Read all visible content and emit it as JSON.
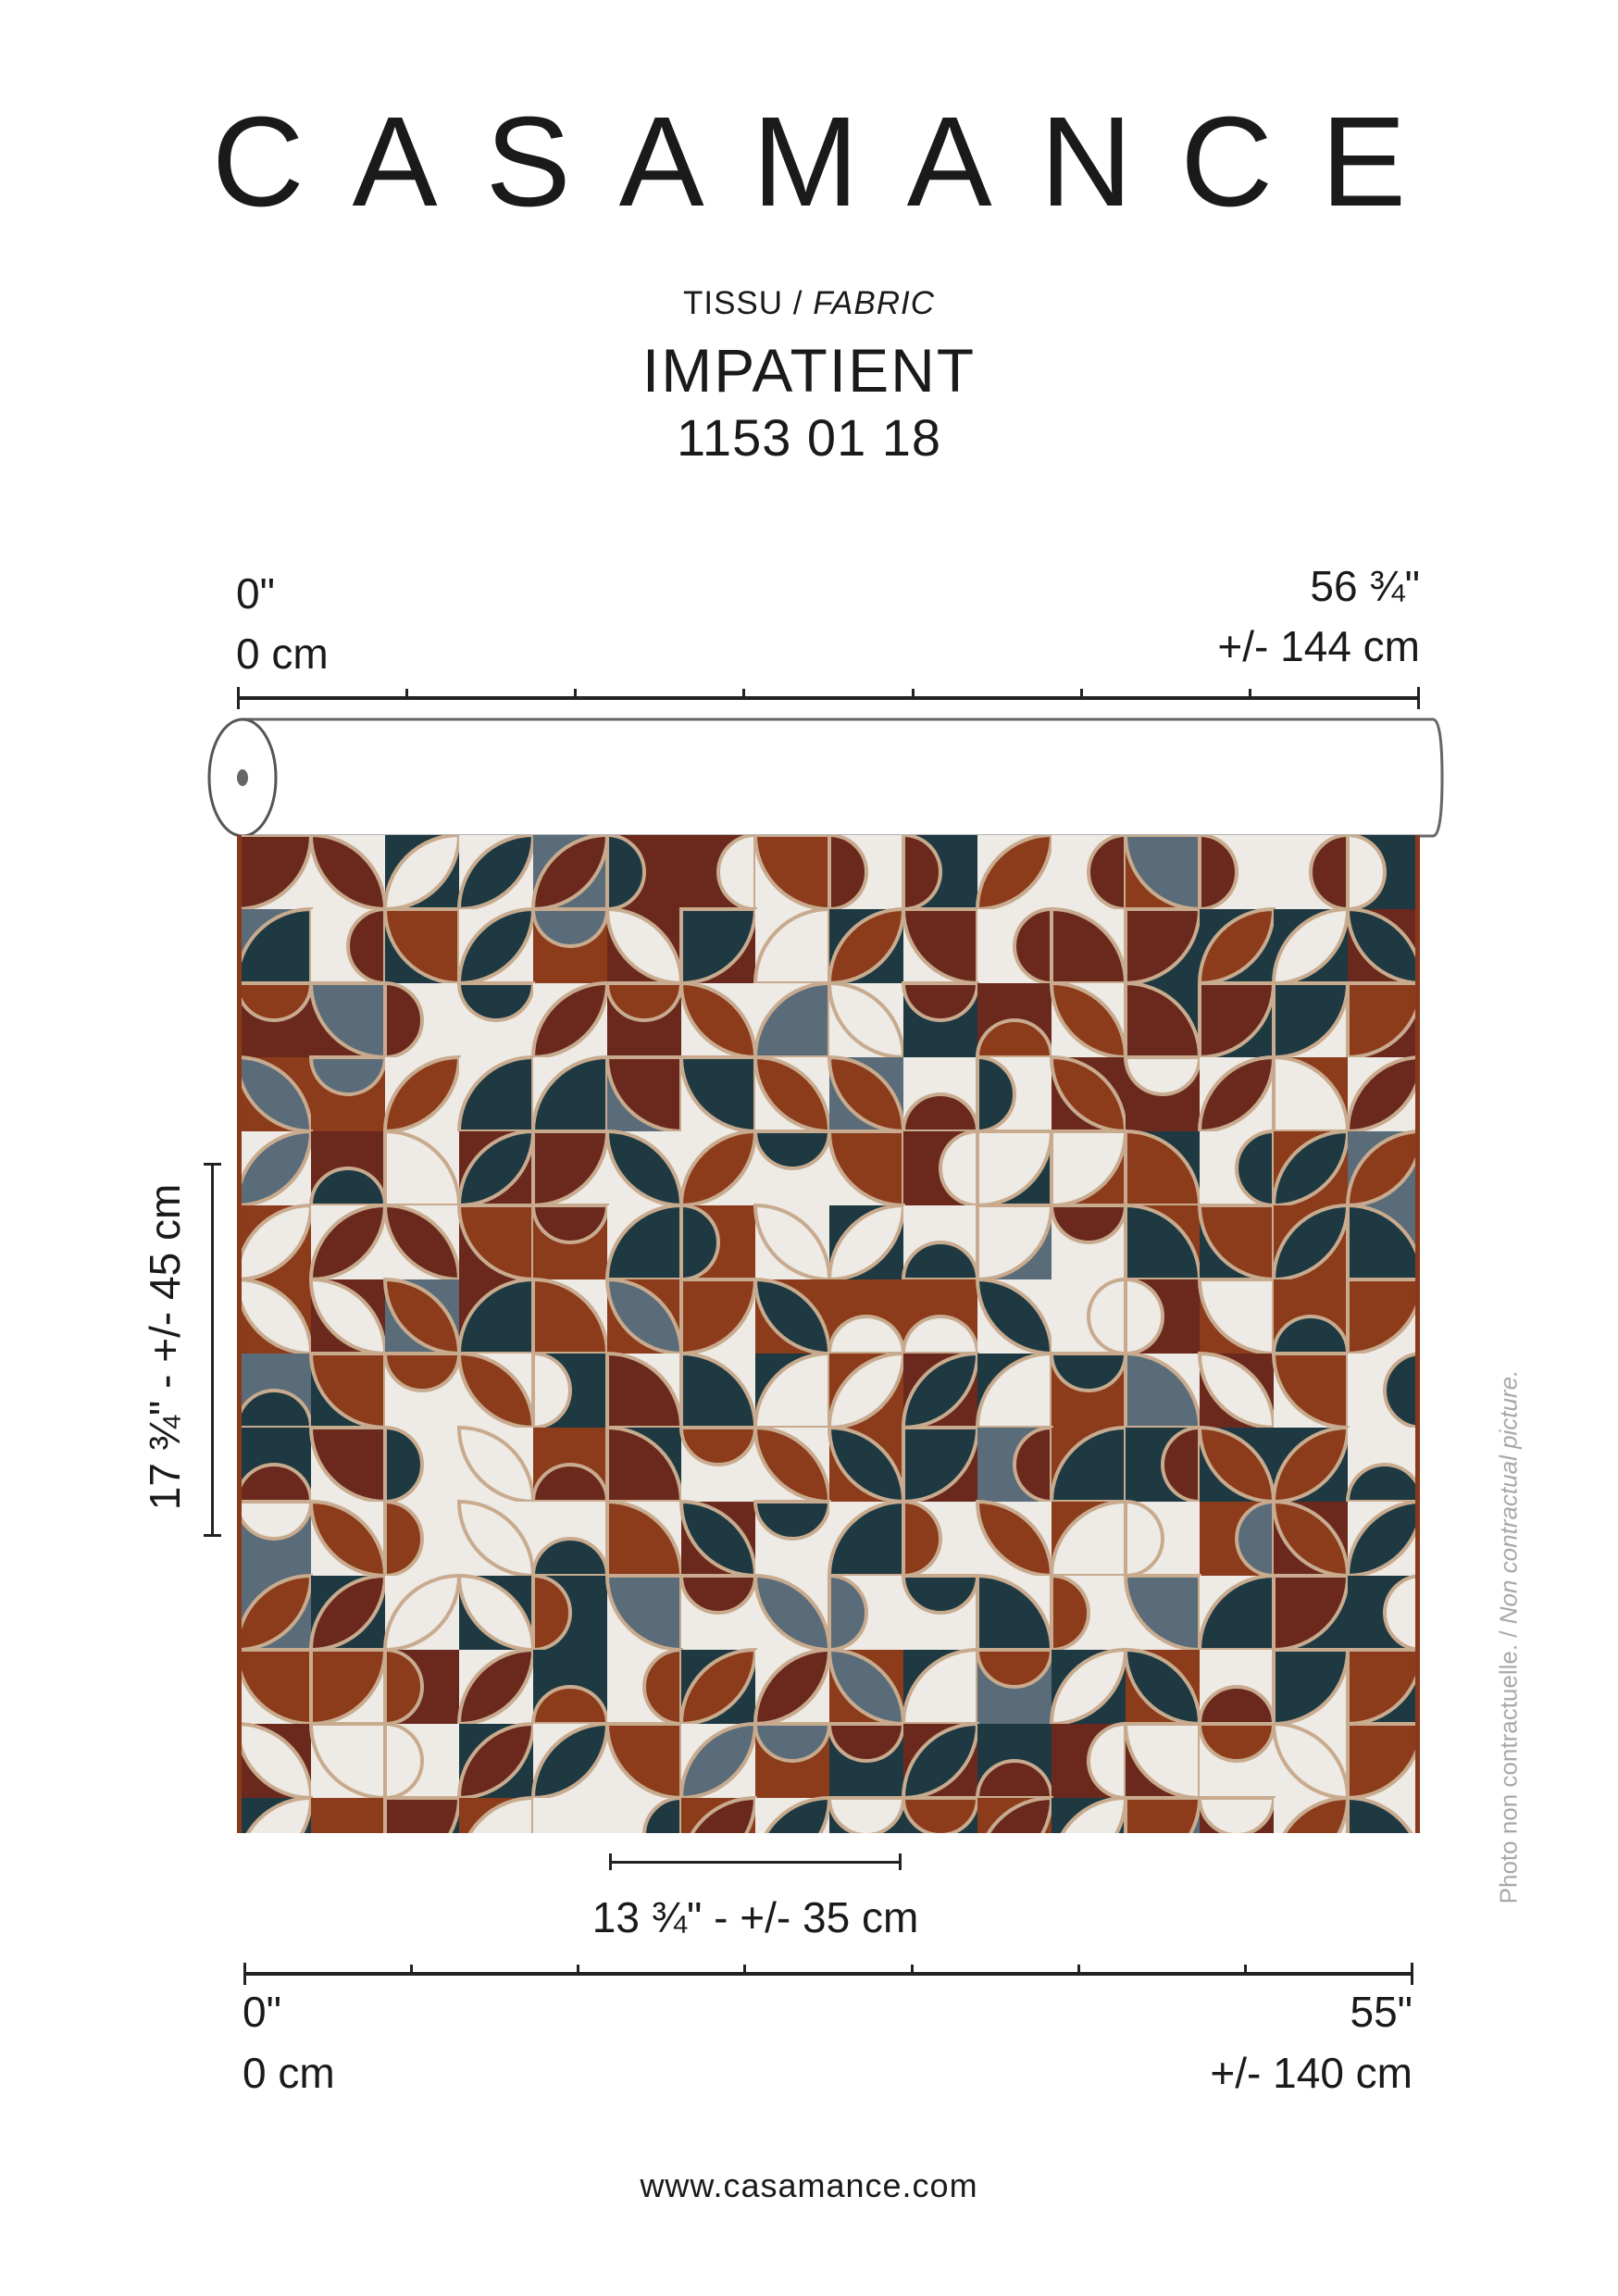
{
  "brand": "CASAMANCE",
  "category": {
    "fr": "TISSU",
    "separator": " / ",
    "en": "FABRIC"
  },
  "product_name": "IMPATIENT",
  "reference": "1153 01 18",
  "top_ruler": {
    "left_in": "0\"",
    "left_cm": "0 cm",
    "right_in": "56 ¾\"",
    "right_cm": "+/- 144 cm"
  },
  "repeat_vertical": "17 ¾\" - +/- 45 cm",
  "repeat_horizontal": "13 ¾\" - +/- 35 cm",
  "bottom_ruler": {
    "left_in": "0\"",
    "left_cm": "0 cm",
    "right_in": "55\"",
    "right_cm": "+/- 140 cm"
  },
  "disclaimer": {
    "fr": "Photo non contractuelle. / ",
    "en": "Non contractual picture."
  },
  "website": "www.casamance.com",
  "pattern_colors": {
    "cream": "#eeeae5",
    "navy": "#1e3942",
    "rust": "#8c3b1b",
    "maroon": "#6b291d",
    "slate": "#5a6c79",
    "tan": "#c8ab8e",
    "edge": "#8a3a1c"
  }
}
